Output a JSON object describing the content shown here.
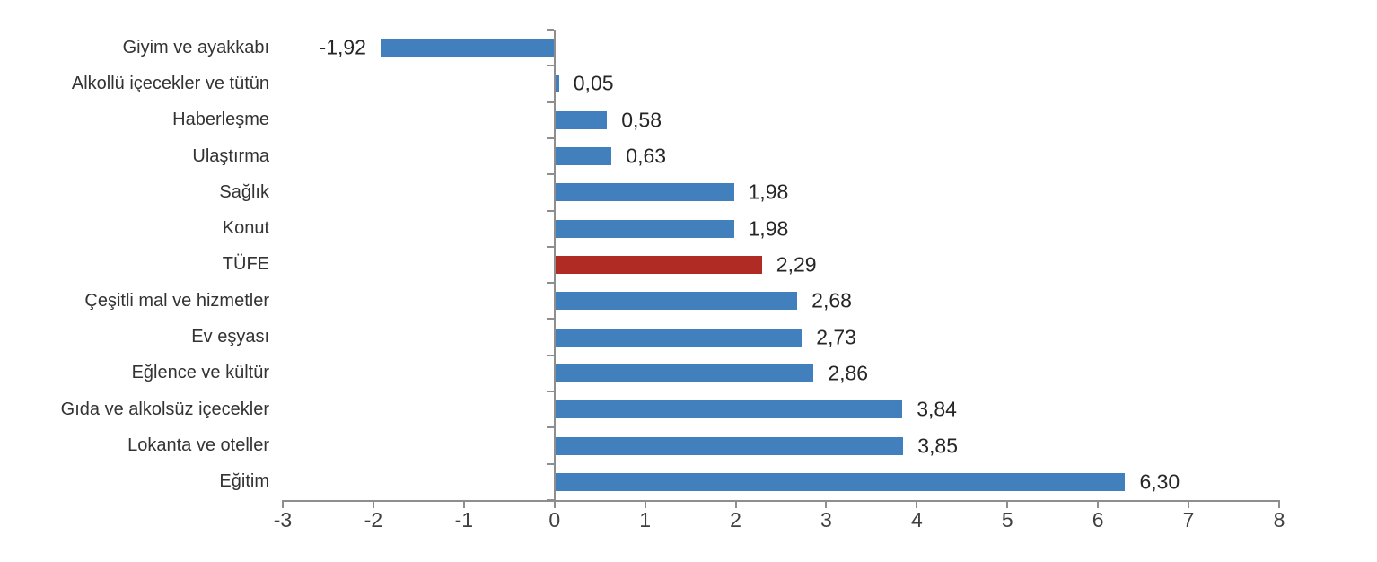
{
  "chart_data": {
    "type": "bar",
    "orientation": "horizontal",
    "title": "",
    "xlabel": "",
    "ylabel": "",
    "xlim": [
      -3,
      8
    ],
    "grid": false,
    "legend_position": "none",
    "categories": [
      "Giyim ve ayakkabı",
      "Alkollü içecekler ve tütün",
      "Haberleşme",
      "Ulaştırma",
      "Sağlık",
      "Konut",
      "TÜFE",
      "Çeşitli mal ve hizmetler",
      "Ev eşyası",
      "Eğlence ve kültür",
      "Gıda ve alkolsüz içecekler",
      "Lokanta ve oteller",
      "Eğitim"
    ],
    "values": [
      -1.92,
      0.05,
      0.58,
      0.63,
      1.98,
      1.98,
      2.29,
      2.68,
      2.73,
      2.86,
      3.84,
      3.85,
      6.3
    ],
    "value_labels": [
      "-1,92",
      "0,05",
      "0,58",
      "0,63",
      "1,98",
      "1,98",
      "2,29",
      "2,68",
      "2,73",
      "2,86",
      "3,84",
      "3,85",
      "6,30"
    ],
    "x_ticks": [
      -3,
      -2,
      -1,
      0,
      1,
      2,
      3,
      4,
      5,
      6,
      7,
      8
    ],
    "x_tick_labels": [
      "-3",
      "-2",
      "-1",
      "0",
      "1",
      "2",
      "3",
      "4",
      "5",
      "6",
      "7",
      "8"
    ],
    "highlight_index": 6,
    "highlight_category": "TÜFE",
    "bar_color": "#4180BD",
    "highlight_color": "#B02B24",
    "axis_color": "#8E8E8E",
    "label_color": "#333333",
    "value_color": "#262626",
    "tick_label_color": "#404040"
  }
}
